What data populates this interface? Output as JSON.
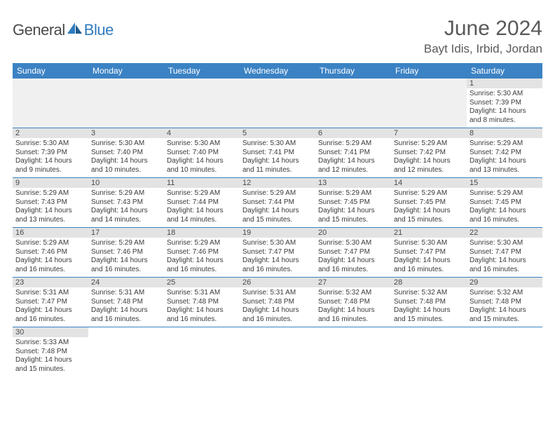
{
  "logo": {
    "part1": "General",
    "part2": "Blue"
  },
  "title": "June 2024",
  "location": "Bayt Idis, Irbid, Jordan",
  "colors": {
    "header_bg": "#3b82c4",
    "header_text": "#ffffff",
    "daynum_bg": "#e3e3e3",
    "border": "#3b82c4",
    "title_color": "#595959",
    "logo_gray": "#4a4a4a",
    "logo_blue": "#2f7bbf"
  },
  "typography": {
    "title_fontsize": 30,
    "location_fontsize": 17,
    "dayheader_fontsize": 12,
    "daynum_fontsize": 11,
    "body_fontsize": 10
  },
  "day_headers": [
    "Sunday",
    "Monday",
    "Tuesday",
    "Wednesday",
    "Thursday",
    "Friday",
    "Saturday"
  ],
  "weeks": [
    [
      null,
      null,
      null,
      null,
      null,
      null,
      {
        "n": "1",
        "sr": "Sunrise: 5:30 AM",
        "ss": "Sunset: 7:39 PM",
        "dl1": "Daylight: 14 hours",
        "dl2": "and 8 minutes."
      }
    ],
    [
      {
        "n": "2",
        "sr": "Sunrise: 5:30 AM",
        "ss": "Sunset: 7:39 PM",
        "dl1": "Daylight: 14 hours",
        "dl2": "and 9 minutes."
      },
      {
        "n": "3",
        "sr": "Sunrise: 5:30 AM",
        "ss": "Sunset: 7:40 PM",
        "dl1": "Daylight: 14 hours",
        "dl2": "and 10 minutes."
      },
      {
        "n": "4",
        "sr": "Sunrise: 5:30 AM",
        "ss": "Sunset: 7:40 PM",
        "dl1": "Daylight: 14 hours",
        "dl2": "and 10 minutes."
      },
      {
        "n": "5",
        "sr": "Sunrise: 5:30 AM",
        "ss": "Sunset: 7:41 PM",
        "dl1": "Daylight: 14 hours",
        "dl2": "and 11 minutes."
      },
      {
        "n": "6",
        "sr": "Sunrise: 5:29 AM",
        "ss": "Sunset: 7:41 PM",
        "dl1": "Daylight: 14 hours",
        "dl2": "and 12 minutes."
      },
      {
        "n": "7",
        "sr": "Sunrise: 5:29 AM",
        "ss": "Sunset: 7:42 PM",
        "dl1": "Daylight: 14 hours",
        "dl2": "and 12 minutes."
      },
      {
        "n": "8",
        "sr": "Sunrise: 5:29 AM",
        "ss": "Sunset: 7:42 PM",
        "dl1": "Daylight: 14 hours",
        "dl2": "and 13 minutes."
      }
    ],
    [
      {
        "n": "9",
        "sr": "Sunrise: 5:29 AM",
        "ss": "Sunset: 7:43 PM",
        "dl1": "Daylight: 14 hours",
        "dl2": "and 13 minutes."
      },
      {
        "n": "10",
        "sr": "Sunrise: 5:29 AM",
        "ss": "Sunset: 7:43 PM",
        "dl1": "Daylight: 14 hours",
        "dl2": "and 14 minutes."
      },
      {
        "n": "11",
        "sr": "Sunrise: 5:29 AM",
        "ss": "Sunset: 7:44 PM",
        "dl1": "Daylight: 14 hours",
        "dl2": "and 14 minutes."
      },
      {
        "n": "12",
        "sr": "Sunrise: 5:29 AM",
        "ss": "Sunset: 7:44 PM",
        "dl1": "Daylight: 14 hours",
        "dl2": "and 15 minutes."
      },
      {
        "n": "13",
        "sr": "Sunrise: 5:29 AM",
        "ss": "Sunset: 7:45 PM",
        "dl1": "Daylight: 14 hours",
        "dl2": "and 15 minutes."
      },
      {
        "n": "14",
        "sr": "Sunrise: 5:29 AM",
        "ss": "Sunset: 7:45 PM",
        "dl1": "Daylight: 14 hours",
        "dl2": "and 15 minutes."
      },
      {
        "n": "15",
        "sr": "Sunrise: 5:29 AM",
        "ss": "Sunset: 7:45 PM",
        "dl1": "Daylight: 14 hours",
        "dl2": "and 16 minutes."
      }
    ],
    [
      {
        "n": "16",
        "sr": "Sunrise: 5:29 AM",
        "ss": "Sunset: 7:46 PM",
        "dl1": "Daylight: 14 hours",
        "dl2": "and 16 minutes."
      },
      {
        "n": "17",
        "sr": "Sunrise: 5:29 AM",
        "ss": "Sunset: 7:46 PM",
        "dl1": "Daylight: 14 hours",
        "dl2": "and 16 minutes."
      },
      {
        "n": "18",
        "sr": "Sunrise: 5:29 AM",
        "ss": "Sunset: 7:46 PM",
        "dl1": "Daylight: 14 hours",
        "dl2": "and 16 minutes."
      },
      {
        "n": "19",
        "sr": "Sunrise: 5:30 AM",
        "ss": "Sunset: 7:47 PM",
        "dl1": "Daylight: 14 hours",
        "dl2": "and 16 minutes."
      },
      {
        "n": "20",
        "sr": "Sunrise: 5:30 AM",
        "ss": "Sunset: 7:47 PM",
        "dl1": "Daylight: 14 hours",
        "dl2": "and 16 minutes."
      },
      {
        "n": "21",
        "sr": "Sunrise: 5:30 AM",
        "ss": "Sunset: 7:47 PM",
        "dl1": "Daylight: 14 hours",
        "dl2": "and 16 minutes."
      },
      {
        "n": "22",
        "sr": "Sunrise: 5:30 AM",
        "ss": "Sunset: 7:47 PM",
        "dl1": "Daylight: 14 hours",
        "dl2": "and 16 minutes."
      }
    ],
    [
      {
        "n": "23",
        "sr": "Sunrise: 5:31 AM",
        "ss": "Sunset: 7:47 PM",
        "dl1": "Daylight: 14 hours",
        "dl2": "and 16 minutes."
      },
      {
        "n": "24",
        "sr": "Sunrise: 5:31 AM",
        "ss": "Sunset: 7:48 PM",
        "dl1": "Daylight: 14 hours",
        "dl2": "and 16 minutes."
      },
      {
        "n": "25",
        "sr": "Sunrise: 5:31 AM",
        "ss": "Sunset: 7:48 PM",
        "dl1": "Daylight: 14 hours",
        "dl2": "and 16 minutes."
      },
      {
        "n": "26",
        "sr": "Sunrise: 5:31 AM",
        "ss": "Sunset: 7:48 PM",
        "dl1": "Daylight: 14 hours",
        "dl2": "and 16 minutes."
      },
      {
        "n": "27",
        "sr": "Sunrise: 5:32 AM",
        "ss": "Sunset: 7:48 PM",
        "dl1": "Daylight: 14 hours",
        "dl2": "and 16 minutes."
      },
      {
        "n": "28",
        "sr": "Sunrise: 5:32 AM",
        "ss": "Sunset: 7:48 PM",
        "dl1": "Daylight: 14 hours",
        "dl2": "and 15 minutes."
      },
      {
        "n": "29",
        "sr": "Sunrise: 5:32 AM",
        "ss": "Sunset: 7:48 PM",
        "dl1": "Daylight: 14 hours",
        "dl2": "and 15 minutes."
      }
    ],
    [
      {
        "n": "30",
        "sr": "Sunrise: 5:33 AM",
        "ss": "Sunset: 7:48 PM",
        "dl1": "Daylight: 14 hours",
        "dl2": "and 15 minutes."
      },
      null,
      null,
      null,
      null,
      null,
      null
    ]
  ]
}
